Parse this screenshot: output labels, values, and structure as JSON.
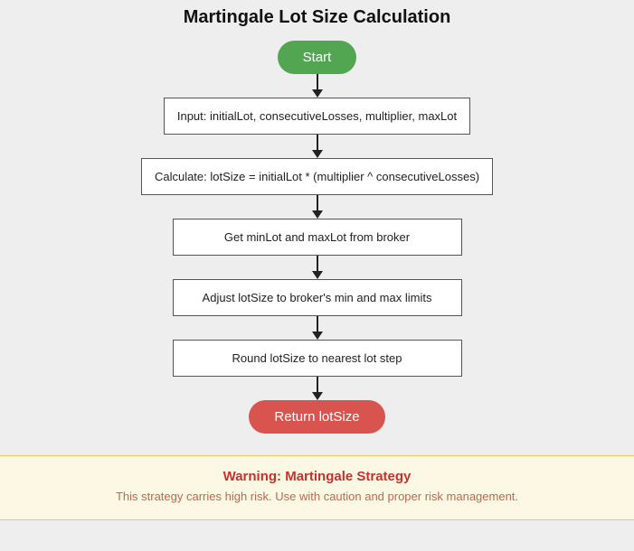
{
  "title": "Martingale Lot Size Calculation",
  "colors": {
    "page_bg": "#eeeeee",
    "start_bg": "#52a652",
    "end_bg": "#d9534f",
    "box_bg": "#ffffff",
    "box_border": "#555555",
    "arrow": "#222222",
    "warn_bg": "#fcf8e3",
    "warn_border": "#f5c26b",
    "warn_title": "#c9302c",
    "warn_text": "#b96a4f"
  },
  "flow": {
    "start": "Start",
    "steps": [
      "Input: initialLot, consecutiveLosses, multiplier, maxLot",
      "Calculate: lotSize = initialLot * (multiplier ^ consecutiveLosses)",
      "Get minLot and maxLot from broker",
      "Adjust lotSize to broker's min and max limits",
      "Round lotSize to nearest lot step"
    ],
    "end": "Return lotSize"
  },
  "warning": {
    "title": "Warning: Martingale Strategy",
    "body": "This strategy carries high risk. Use with caution and proper risk management."
  }
}
